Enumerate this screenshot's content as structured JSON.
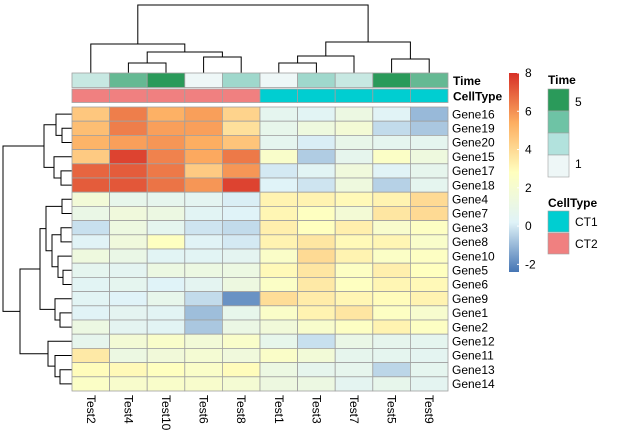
{
  "chart_data": {
    "type": "heatmap",
    "columns": [
      "Test2",
      "Test4",
      "Test10",
      "Test6",
      "Test8",
      "Test1",
      "Test3",
      "Test7",
      "Test5",
      "Test9"
    ],
    "rows": [
      "Gene16",
      "Gene19",
      "Gene20",
      "Gene15",
      "Gene17",
      "Gene18",
      "Gene4",
      "Gene7",
      "Gene3",
      "Gene8",
      "Gene10",
      "Gene5",
      "Gene6",
      "Gene9",
      "Gene1",
      "Gene2",
      "Gene12",
      "Gene11",
      "Gene13",
      "Gene14"
    ],
    "values": [
      [
        4.6,
        6.4,
        5.3,
        5.7,
        4.2,
        0.6,
        0.4,
        1.2,
        0.3,
        -1.0
      ],
      [
        4.9,
        6.4,
        5.7,
        5.7,
        3.8,
        0.8,
        1.4,
        1.8,
        -0.3,
        -0.7
      ],
      [
        5.2,
        5.7,
        5.9,
        5.4,
        4.7,
        0.6,
        0.1,
        0.9,
        0.6,
        0.6
      ],
      [
        4.5,
        7.6,
        6.3,
        5.5,
        6.5,
        2.3,
        -0.6,
        0.7,
        2.5,
        1.4
      ],
      [
        6.9,
        7.1,
        6.5,
        4.5,
        5.9,
        0.0,
        0.4,
        1.5,
        0.3,
        0.7
      ],
      [
        7.1,
        7.2,
        6.6,
        5.9,
        7.6,
        0.2,
        -0.1,
        1.4,
        -0.5,
        0.6
      ],
      [
        1.7,
        0.8,
        0.7,
        0.5,
        0.1,
        3.2,
        3.2,
        3.0,
        3.2,
        4.0
      ],
      [
        1.0,
        1.5,
        1.2,
        0.4,
        0.2,
        3.1,
        2.7,
        1.8,
        3.6,
        4.0
      ],
      [
        -0.2,
        1.3,
        0.6,
        -0.1,
        -0.3,
        3.3,
        2.8,
        3.3,
        2.2,
        2.6
      ],
      [
        0.3,
        1.5,
        2.7,
        0.3,
        0.0,
        3.2,
        3.6,
        3.0,
        3.1,
        2.3
      ],
      [
        1.4,
        1.0,
        0.4,
        0.4,
        0.5,
        2.4,
        4.0,
        3.2,
        2.5,
        2.6
      ],
      [
        0.6,
        0.5,
        1.2,
        1.2,
        1.2,
        3.0,
        3.6,
        2.6,
        3.3,
        2.8
      ],
      [
        0.4,
        0.6,
        0.2,
        0.5,
        1.3,
        2.5,
        3.5,
        2.7,
        3.1,
        3.0
      ],
      [
        0.4,
        0.2,
        0.8,
        -0.3,
        -1.8,
        3.9,
        3.4,
        3.1,
        2.9,
        3.2
      ],
      [
        0.3,
        0.5,
        0.4,
        -0.9,
        0.8,
        2.4,
        3.2,
        3.6,
        2.6,
        2.1
      ],
      [
        1.2,
        0.5,
        0.4,
        -0.7,
        1.1,
        1.6,
        2.2,
        2.6,
        3.2,
        2.6
      ],
      [
        0.7,
        1.8,
        2.3,
        1.7,
        2.3,
        0.8,
        -0.2,
        1.0,
        0.7,
        0.6
      ],
      [
        3.5,
        1.2,
        1.6,
        1.9,
        1.5,
        2.4,
        1.7,
        0.7,
        0.6,
        0.5
      ],
      [
        2.9,
        3.0,
        2.8,
        2.4,
        2.9,
        1.2,
        0.7,
        0.7,
        -0.4,
        0.6
      ],
      [
        2.5,
        2.2,
        2.3,
        2.2,
        1.9,
        1.3,
        1.2,
        0.5,
        0.8,
        0.5
      ]
    ],
    "annotations": {
      "Time": {
        "label": "Time",
        "values": [
          2,
          4,
          5,
          1,
          3,
          1,
          3,
          2,
          5,
          4
        ],
        "legend_labels": [
          "5",
          "1"
        ]
      },
      "CellType": {
        "label": "CellType",
        "values": [
          "CT2",
          "CT2",
          "CT2",
          "CT2",
          "CT2",
          "CT1",
          "CT1",
          "CT1",
          "CT1",
          "CT1"
        ],
        "legend_labels": [
          "CT1",
          "CT2"
        ]
      }
    },
    "color_scale": {
      "min": -2.4,
      "max": 8,
      "ticks": [
        8,
        6,
        4,
        2,
        0,
        -2
      ],
      "stops": [
        {
          "value": -2.4,
          "color": "#4575b4"
        },
        {
          "value": 0.2,
          "color": "#e0f3f8"
        },
        {
          "value": 2.8,
          "color": "#ffffbf"
        },
        {
          "value": 5.4,
          "color": "#fdae61"
        },
        {
          "value": 8.0,
          "color": "#d73027"
        }
      ]
    },
    "colors": {
      "cell_border": "#a0a0a0",
      "dendrogram": "#000000",
      "ct1": "#00ced1",
      "ct2": "#f08080",
      "time_low": "#eef7f7",
      "time_high": "#2a9a5a"
    }
  }
}
